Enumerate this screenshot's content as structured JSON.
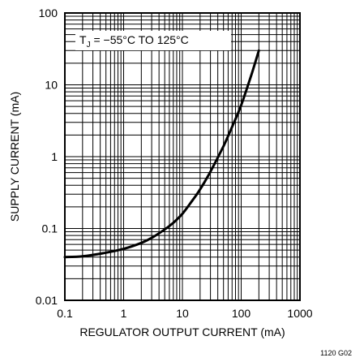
{
  "chart_data": {
    "type": "line",
    "title": "",
    "xlabel": "REGULATOR OUTPUT CURRENT (mA)",
    "ylabel": "SUPPLY CURRENT (mA)",
    "x_scale": "log",
    "y_scale": "log",
    "xlim": [
      0.1,
      1000
    ],
    "ylim": [
      0.01,
      100
    ],
    "x_tick_labels": [
      "0.1",
      "1",
      "10",
      "100",
      "1000"
    ],
    "y_tick_labels": [
      "0.01",
      "0.1",
      "1",
      "10",
      "100"
    ],
    "grid": true,
    "legend": "none",
    "annotation": {
      "prefix": "T",
      "subscript": "J",
      "text": " = −55°C TO 125°C"
    },
    "series": [
      {
        "line_color": "#000000",
        "x": [
          0.1,
          0.2,
          0.5,
          1,
          2,
          3,
          5,
          7,
          10,
          15,
          20,
          30,
          50,
          70,
          100,
          150,
          200
        ],
        "y": [
          0.04,
          0.041,
          0.046,
          0.052,
          0.063,
          0.074,
          0.097,
          0.12,
          0.16,
          0.25,
          0.35,
          0.62,
          1.4,
          2.6,
          5.2,
          14,
          30
        ]
      }
    ]
  },
  "figure_id": "1120 G02"
}
